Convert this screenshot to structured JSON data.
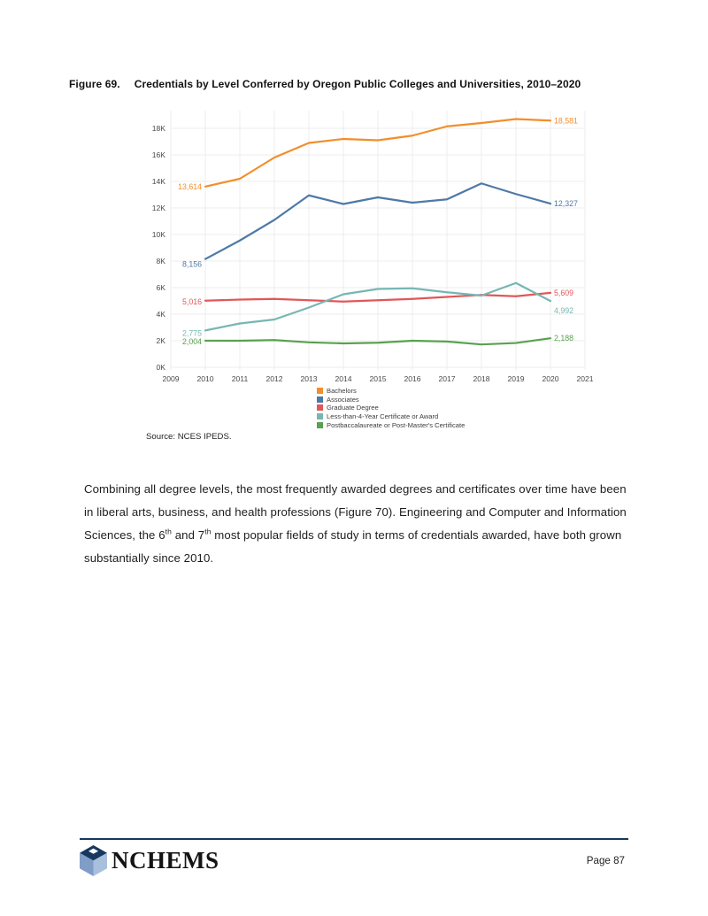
{
  "figure": {
    "label": "Figure 69.",
    "title": "Credentials by Level Conferred by Oregon Public Colleges and Universities, 2010–2020"
  },
  "chart_data": {
    "type": "line",
    "x": [
      2010,
      2011,
      2012,
      2013,
      2014,
      2015,
      2016,
      2017,
      2018,
      2019,
      2020
    ],
    "x_axis_ticks": [
      2009,
      2010,
      2011,
      2012,
      2013,
      2014,
      2015,
      2016,
      2017,
      2018,
      2019,
      2020,
      2021
    ],
    "y_axis_ticks": [
      "0K",
      "2K",
      "4K",
      "6K",
      "8K",
      "10K",
      "12K",
      "14K",
      "16K",
      "18K"
    ],
    "ylim": [
      0,
      19000
    ],
    "grid": true,
    "legend_position": "bottom-left",
    "series": [
      {
        "name": "Bachelors",
        "color": "#f28e2b",
        "values": [
          13614,
          14200,
          15800,
          16900,
          17200,
          17100,
          17450,
          18150,
          18400,
          18700,
          18581
        ],
        "start_label": "13,614",
        "end_label": "18,581"
      },
      {
        "name": "Associates",
        "color": "#4e79a7",
        "values": [
          8156,
          9550,
          11100,
          12950,
          12300,
          12800,
          12400,
          12650,
          13850,
          13050,
          12327
        ],
        "start_label": "8,156",
        "end_label": "12,327"
      },
      {
        "name": "Graduate Degree",
        "color": "#e15759",
        "values": [
          5016,
          5100,
          5150,
          5050,
          4950,
          5050,
          5150,
          5300,
          5450,
          5350,
          5609
        ],
        "start_label": "5,016",
        "end_label": "5,609"
      },
      {
        "name": "Less-than-4-Year Certificate or Award",
        "color": "#76b7b2",
        "values": [
          2775,
          3300,
          3600,
          4500,
          5500,
          5900,
          5950,
          5650,
          5400,
          6350,
          4992
        ],
        "start_label": "2,775",
        "end_label": "4,992"
      },
      {
        "name": "Postbaccalaureate or Post-Master's Certificate",
        "color": "#59a14f",
        "values": [
          2004,
          2000,
          2050,
          1880,
          1800,
          1850,
          2000,
          1940,
          1720,
          1830,
          2188
        ],
        "start_label": "2,004",
        "end_label": "2,188"
      }
    ]
  },
  "source_note": "Source: NCES IPEDS.",
  "paragraph": {
    "runs": [
      {
        "text": "Combining all degree levels, the most frequently awarded degrees and certificates over time have been in liberal arts, business, and health professions (Figure 70). Engineering and Computer and Information Sciences, the 6",
        "sup": false
      },
      {
        "text": "th",
        "sup": true
      },
      {
        "text": " and 7",
        "sup": false
      },
      {
        "text": "th",
        "sup": true
      },
      {
        "text": " most popular fields of study in terms of credentials awarded, have both grown substantially since 2010.",
        "sup": false
      }
    ]
  },
  "footer": {
    "logo_icon": "cube-logo-icon",
    "logo_text": "NCHEMS",
    "rule_color": "#17375e",
    "page_number": "Page 87"
  }
}
